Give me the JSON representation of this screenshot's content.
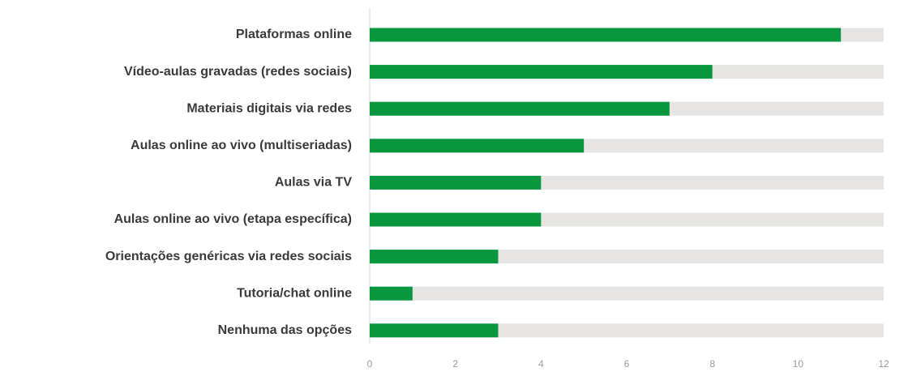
{
  "chart_data": {
    "type": "bar",
    "orientation": "horizontal",
    "categories": [
      "Plataformas online",
      "Vídeo-aulas gravadas (redes sociais)",
      "Materiais digitais via redes",
      "Aulas online ao vivo (multiseriadas)",
      "Aulas via TV",
      "Aulas online ao vivo (etapa específica)",
      "Orientações genéricas via redes sociais",
      "Tutoria/chat online",
      "Nenhuma das opções"
    ],
    "values": [
      11,
      8,
      7,
      5,
      4,
      4,
      3,
      1,
      3
    ],
    "xlim": [
      0,
      12
    ],
    "xticks": [
      "0",
      "2",
      "4",
      "6",
      "8",
      "10",
      "12"
    ],
    "title": "",
    "xlabel": "",
    "ylabel": "",
    "grid": false,
    "legend": "none",
    "colors": {
      "bar": "#08973f",
      "track": "#e6e5e3",
      "axis": "#d9d9d9"
    }
  }
}
